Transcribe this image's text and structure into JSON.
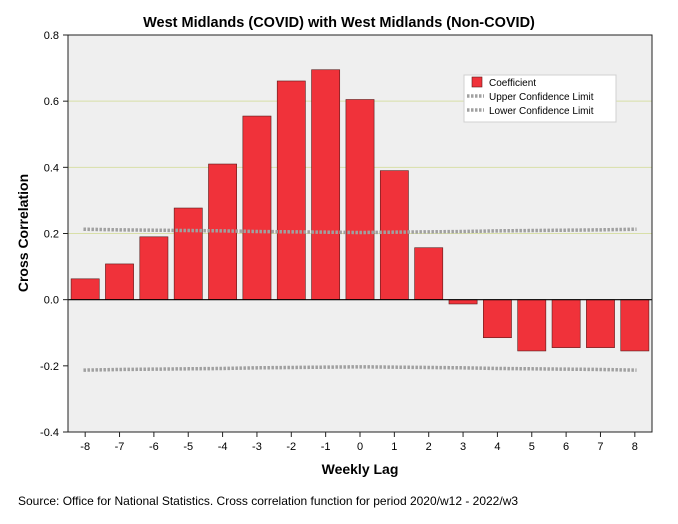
{
  "chart_data": {
    "type": "bar",
    "title": "West Midlands (COVID) with West Midlands (Non-COVID)",
    "xlabel": "Weekly Lag",
    "ylabel": "Cross Correlation",
    "ylim": [
      -0.4,
      0.8
    ],
    "yticks": [
      "-0.4",
      "-0.2",
      "0.0",
      "0.2",
      "0.4",
      "0.6",
      "0.8"
    ],
    "yticks_values": [
      -0.4,
      -0.2,
      0.0,
      0.2,
      0.4,
      0.6,
      0.8
    ],
    "gridlines": [
      0.2,
      0.4,
      0.6
    ],
    "categories": [
      "-8",
      "-7",
      "-6",
      "-5",
      "-4",
      "-3",
      "-2",
      "-1",
      "0",
      "1",
      "2",
      "3",
      "4",
      "5",
      "6",
      "7",
      "8"
    ],
    "series": [
      {
        "name": "Coefficient",
        "type": "bar",
        "color": "#f0323a",
        "values": [
          0.063,
          0.108,
          0.19,
          0.277,
          0.41,
          0.555,
          0.661,
          0.695,
          0.605,
          0.39,
          0.157,
          -0.013,
          -0.115,
          -0.155,
          -0.145,
          -0.145,
          -0.155
        ]
      },
      {
        "name": "Upper Confidence Limit",
        "type": "dotted-line",
        "color": "#a0a0a0",
        "values": [
          0.213,
          0.211,
          0.21,
          0.209,
          0.208,
          0.206,
          0.205,
          0.204,
          0.203,
          0.204,
          0.205,
          0.206,
          0.208,
          0.209,
          0.21,
          0.211,
          0.213
        ]
      },
      {
        "name": "Lower Confidence Limit",
        "type": "dotted-line",
        "color": "#a0a0a0",
        "values": [
          -0.213,
          -0.211,
          -0.21,
          -0.209,
          -0.208,
          -0.206,
          -0.205,
          -0.204,
          -0.203,
          -0.204,
          -0.205,
          -0.206,
          -0.208,
          -0.209,
          -0.21,
          -0.211,
          -0.213
        ]
      }
    ],
    "legend_position": "top-right",
    "source": "Source: Office for National Statistics. Cross correlation function for period 2020/w12 - 2022/w3"
  },
  "colors": {
    "plot_background": "#efefef",
    "gridline": "#d8dfa8",
    "bar_fill": "#f0323a",
    "bar_stroke": "#5a1a1a",
    "confidence_line": "#a0a0a0"
  }
}
